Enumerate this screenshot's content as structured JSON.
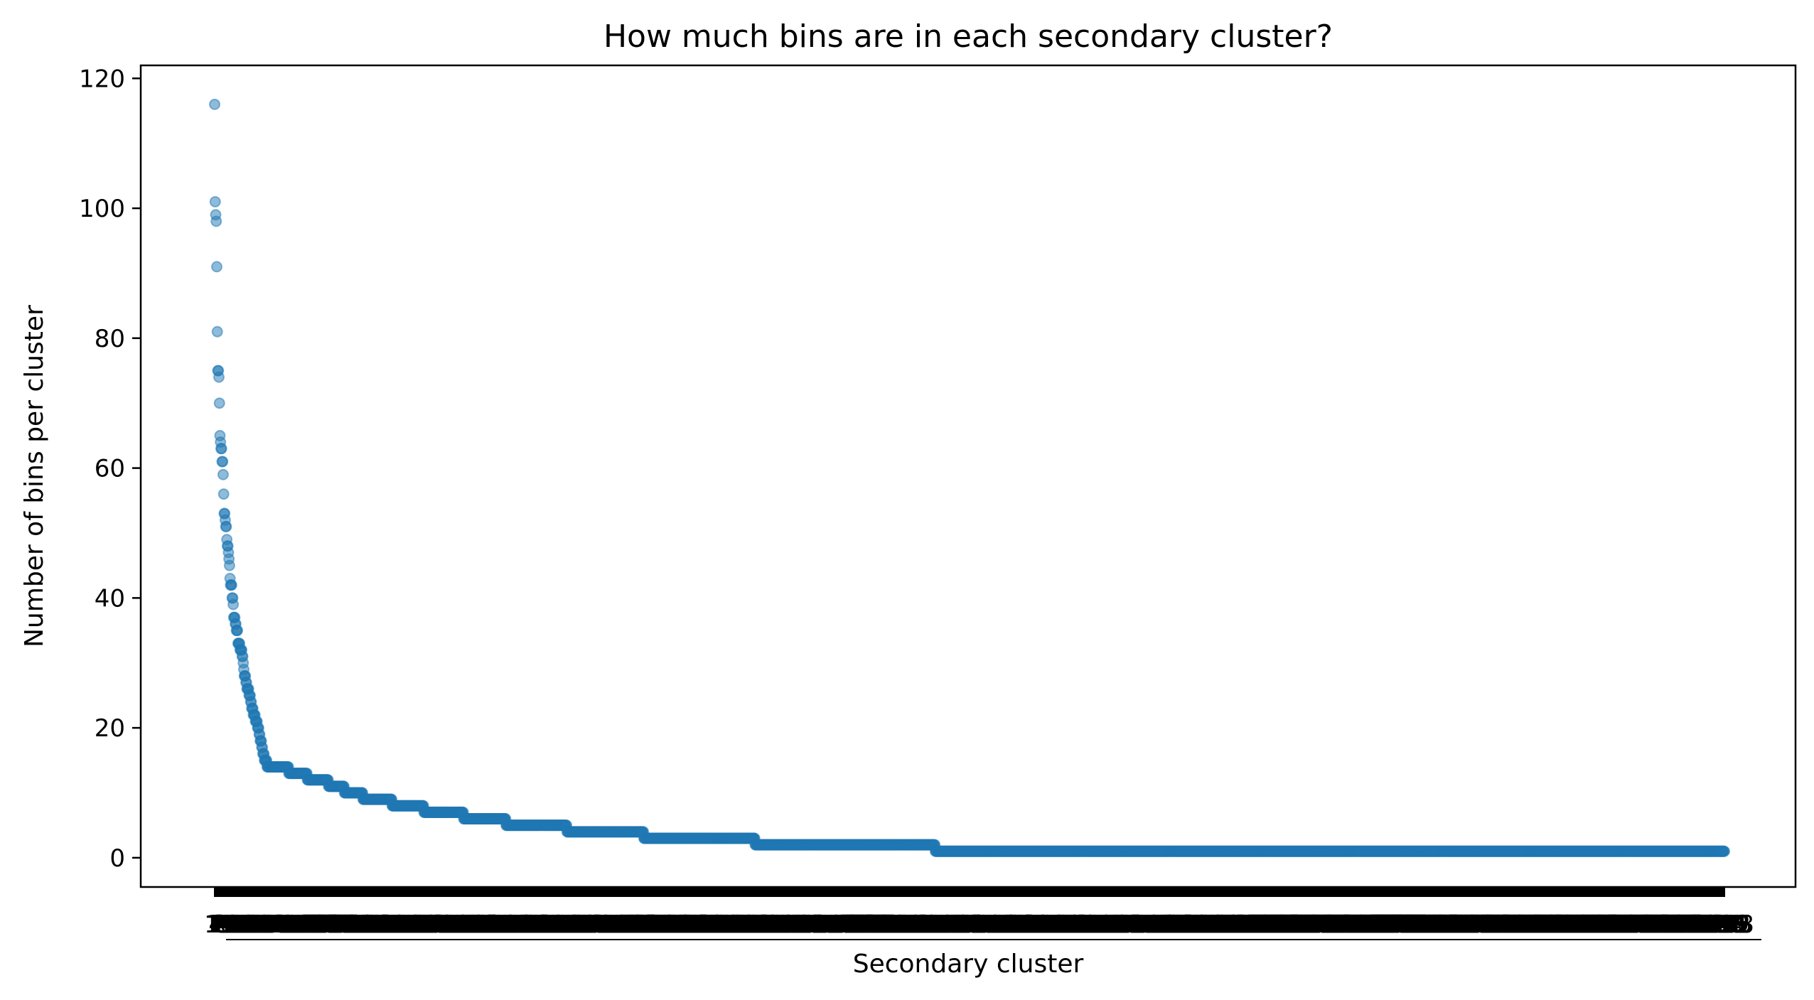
{
  "chart_data": {
    "type": "scatter",
    "title": "How much bins are in each secondary cluster?",
    "xlabel": "Secondary cluster",
    "ylabel": "Number of bins per cluster",
    "ylim": [
      -4.5,
      122
    ],
    "yticks": [
      0,
      20,
      40,
      60,
      80,
      100,
      120
    ],
    "grid": false,
    "legend": "none",
    "point_color": "#1f77b4",
    "point_alpha": 0.5,
    "n_clusters": 2850,
    "x_tick_labels_note": "one unreadable, overlapping tick label per cluster",
    "top_values": [
      116,
      101,
      99,
      98,
      91,
      81,
      75,
      75,
      74,
      70,
      65,
      64,
      63,
      63,
      61,
      61,
      59,
      56,
      53,
      53,
      52,
      51,
      51,
      49,
      48,
      48,
      47,
      46,
      45,
      43,
      42,
      42,
      42,
      40,
      40,
      39,
      37,
      37,
      37,
      36,
      36,
      35,
      35,
      35,
      33,
      33,
      33,
      33,
      32,
      32,
      32,
      32,
      31,
      31,
      30,
      29,
      28,
      28,
      28,
      27,
      27,
      26,
      26,
      26,
      26,
      25,
      25,
      25,
      24,
      24,
      23,
      23,
      23,
      22,
      22,
      22,
      22,
      21,
      21,
      21,
      21,
      20,
      20,
      20,
      19,
      19,
      18,
      18,
      18,
      17,
      17,
      16,
      16,
      16,
      15,
      15,
      15,
      15,
      15,
      14
    ],
    "plateaus": [
      {
        "value": 14,
        "count": 40
      },
      {
        "value": 13,
        "count": 35
      },
      {
        "value": 12,
        "count": 40
      },
      {
        "value": 11,
        "count": 30
      },
      {
        "value": 10,
        "count": 35
      },
      {
        "value": 9,
        "count": 55
      },
      {
        "value": 8,
        "count": 60
      },
      {
        "value": 7,
        "count": 75
      },
      {
        "value": 6,
        "count": 80
      },
      {
        "value": 5,
        "count": 115
      },
      {
        "value": 4,
        "count": 145
      },
      {
        "value": 3,
        "count": 210
      },
      {
        "value": 2,
        "count": 340
      },
      {
        "value": 1,
        "count": 1440
      }
    ]
  }
}
